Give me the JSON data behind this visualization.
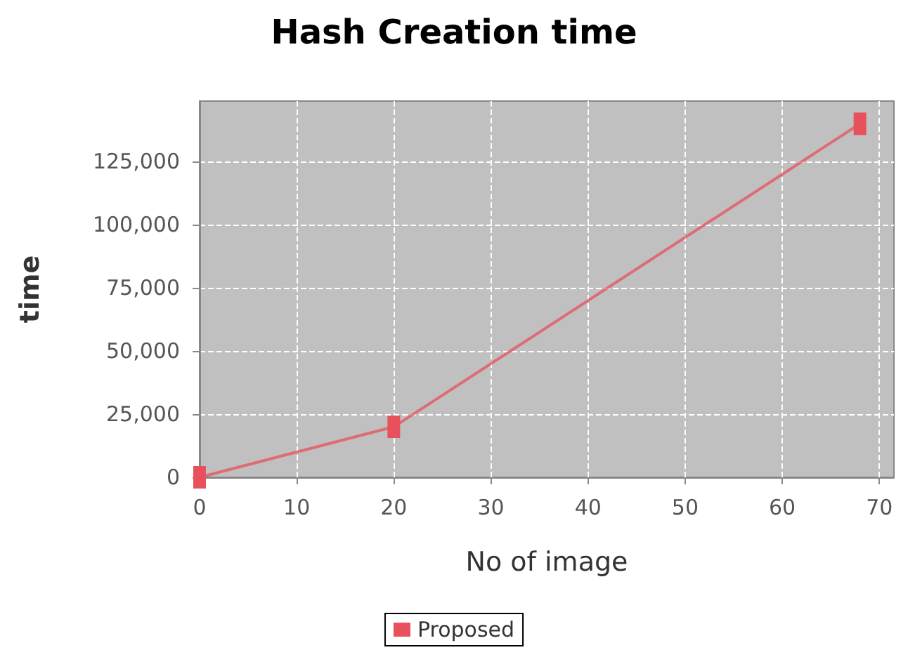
{
  "chart_data": {
    "type": "line",
    "title": "Hash Creation time",
    "xlabel": "No of image",
    "ylabel": "time",
    "x": [
      0,
      20,
      68
    ],
    "series": [
      {
        "name": "Proposed",
        "color": "#e8505b",
        "values": [
          0,
          20000,
          140000
        ]
      }
    ],
    "xlim": [
      0,
      71.5
    ],
    "xticks": [
      0,
      10,
      20,
      30,
      40,
      50,
      60,
      70
    ],
    "ylim": [
      0,
      149000
    ],
    "yticks": [
      0,
      {
        "value": 25000,
        "label": "25,000"
      },
      {
        "value": 50000,
        "label": "50,000"
      },
      {
        "value": 75000,
        "label": "75,000"
      },
      {
        "value": 100000,
        "label": "100,000"
      },
      {
        "value": 125000,
        "label": "125,000"
      }
    ],
    "grid": true,
    "legend": "bottom",
    "marker": "square"
  }
}
